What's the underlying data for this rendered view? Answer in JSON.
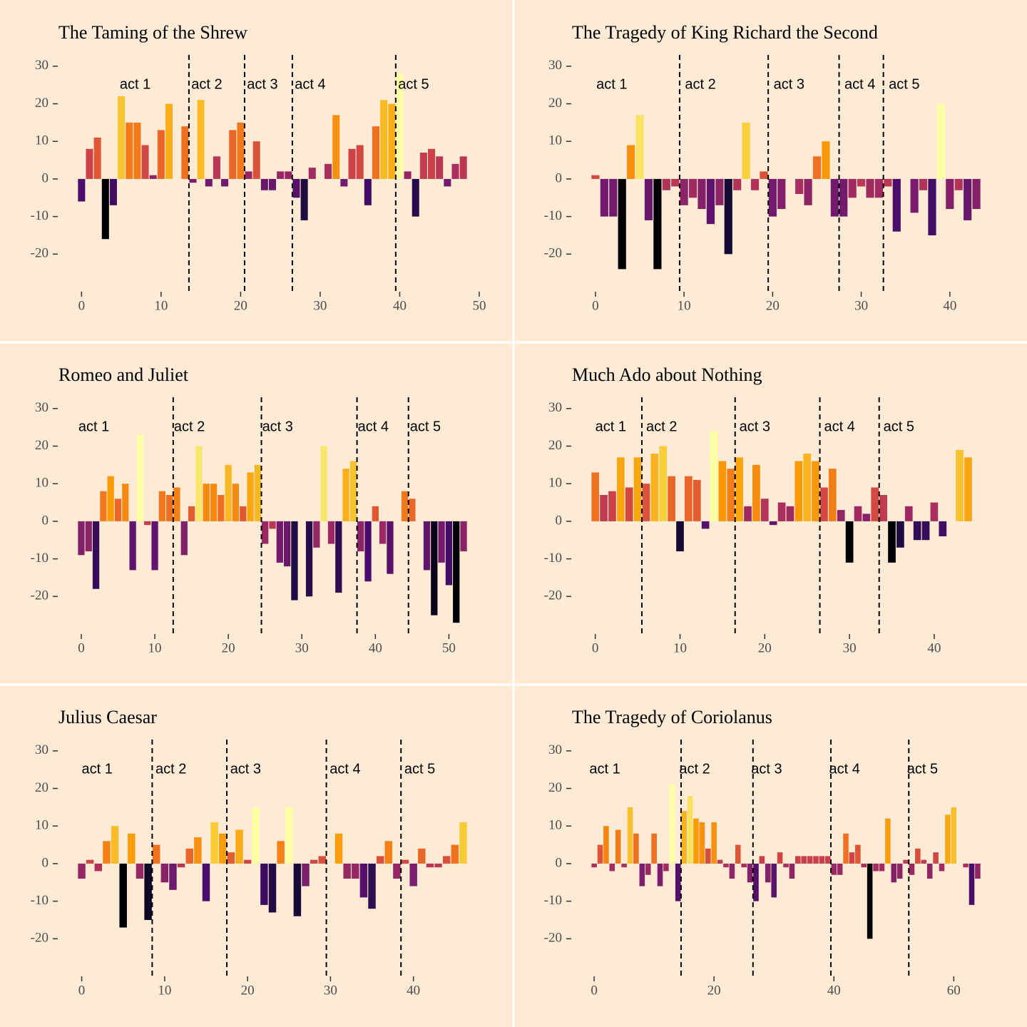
{
  "chart_data": [
    {
      "type": "bar",
      "title": "The Taming of the Shrew",
      "x": [
        0,
        1,
        2,
        3,
        4,
        5,
        6,
        7,
        8,
        9,
        10,
        11,
        12,
        13,
        14,
        15,
        16,
        17,
        18,
        19,
        20,
        21,
        22,
        23,
        24,
        25,
        26,
        27,
        28,
        29,
        30,
        31,
        32,
        33,
        34,
        35,
        36,
        37,
        38,
        39,
        40,
        41,
        42,
        43,
        44,
        45,
        46,
        47,
        48
      ],
      "values": [
        -6,
        8,
        11,
        -16,
        -7,
        22,
        15,
        15,
        9,
        1,
        13,
        20,
        0,
        14,
        -1,
        21,
        -2,
        6,
        -2,
        13,
        15,
        2,
        10,
        -3,
        -3,
        2,
        2,
        -5,
        -11,
        3,
        0,
        4,
        17,
        -2,
        8,
        9,
        -7,
        14,
        21,
        20,
        28,
        2,
        -10,
        7,
        8,
        6,
        -2,
        4,
        6
      ],
      "xlim": [
        -2.9,
        50.9
      ],
      "ylim": [
        -30,
        33
      ],
      "xticks": [
        0,
        10,
        20,
        30,
        40,
        50
      ],
      "yticks": [
        -20,
        -10,
        0,
        10,
        20,
        30
      ],
      "act_lines": [
        13.5,
        20.5,
        26.5,
        39.5
      ],
      "acts": [
        "act 1",
        "act 2",
        "act 3",
        "act 4",
        "act 5"
      ],
      "act_x": [
        4.8,
        13.8,
        20.8,
        26.8,
        39.8
      ],
      "act_label_y": 25,
      "colormap": [
        "#000004",
        "#1b0c41",
        "#4a0c6b",
        "#781c6d",
        "#a52c60",
        "#cf4446",
        "#ed6925",
        "#fb9b06",
        "#f7d13d",
        "#fcffa4"
      ]
    },
    {
      "type": "bar",
      "title": "The Tragedy of King Richard the Second",
      "x": [
        0,
        1,
        2,
        3,
        4,
        5,
        6,
        7,
        8,
        9,
        10,
        11,
        12,
        13,
        14,
        15,
        16,
        17,
        18,
        19,
        20,
        21,
        22,
        23,
        24,
        25,
        26,
        27,
        28,
        29,
        30,
        31,
        32,
        33,
        34,
        35,
        36,
        37,
        38,
        39,
        40,
        41,
        42,
        43
      ],
      "values": [
        1,
        -10,
        -10,
        -24,
        9,
        17,
        -11,
        -24,
        -3,
        -2,
        -7,
        -5,
        -8,
        -12,
        -7,
        -20,
        -3,
        15,
        -3,
        2,
        -10,
        -8,
        0,
        -4,
        -7,
        6,
        10,
        -10,
        -10,
        -5,
        -2,
        -5,
        -5,
        -2,
        -14,
        0,
        -9,
        -3,
        -15,
        20,
        -8,
        -3,
        -11,
        -8
      ],
      "xlim": [
        -2.65,
        45.65
      ],
      "ylim": [
        -30,
        33
      ],
      "xticks": [
        0,
        10,
        20,
        30,
        40
      ],
      "yticks": [
        -20,
        -10,
        0,
        10,
        20,
        30
      ],
      "act_lines": [
        9.5,
        19.5,
        27.5,
        32.5
      ],
      "acts": [
        "act 1",
        "act 2",
        "act 3",
        "act 4",
        "act 5"
      ],
      "act_x": [
        0.1,
        10.1,
        20.1,
        28.1,
        33.1
      ],
      "act_label_y": 25,
      "colormap": [
        "#000004",
        "#1b0c41",
        "#4a0c6b",
        "#781c6d",
        "#a52c60",
        "#cf4446",
        "#ed6925",
        "#fb9b06",
        "#f7d13d",
        "#fcffa4"
      ]
    },
    {
      "type": "bar",
      "title": "Romeo and Juliet",
      "x": [
        0,
        1,
        2,
        3,
        4,
        5,
        6,
        7,
        8,
        9,
        10,
        11,
        12,
        13,
        14,
        15,
        16,
        17,
        18,
        19,
        20,
        21,
        22,
        23,
        24,
        25,
        26,
        27,
        28,
        29,
        30,
        31,
        32,
        33,
        34,
        35,
        36,
        37,
        38,
        39,
        40,
        41,
        42,
        43,
        44,
        45,
        46,
        47,
        48,
        49,
        50,
        51,
        52
      ],
      "values": [
        -9,
        -8,
        -18,
        8,
        12,
        6,
        10,
        -13,
        23,
        -1,
        -13,
        8,
        7,
        9,
        -9,
        4,
        20,
        10,
        10,
        7,
        15,
        10,
        4,
        13,
        15,
        -6,
        -2,
        -11,
        -12,
        -21,
        0,
        -20,
        -7,
        20,
        -6,
        -19,
        14,
        16,
        -8,
        -16,
        4,
        -6,
        -14,
        0,
        8,
        6,
        0,
        -13,
        -25,
        -11,
        -17,
        -27,
        -8
      ],
      "xlim": [
        -3.1,
        55.1
      ],
      "ylim": [
        -30,
        33
      ],
      "xticks": [
        0,
        10,
        20,
        30,
        40,
        50
      ],
      "yticks": [
        -20,
        -10,
        0,
        10,
        20,
        30
      ],
      "act_lines": [
        12.5,
        24.5,
        37.5,
        44.5
      ],
      "acts": [
        "act 1",
        "act 2",
        "act 3",
        "act 4",
        "act 5"
      ],
      "act_x": [
        -0.4,
        12.6,
        24.6,
        37.6,
        44.7
      ],
      "act_label_y": 25,
      "colormap": [
        "#000004",
        "#1b0c41",
        "#4a0c6b",
        "#781c6d",
        "#a52c60",
        "#cf4446",
        "#ed6925",
        "#fb9b06",
        "#f7d13d",
        "#fcffa4"
      ]
    },
    {
      "type": "bar",
      "title": "Much Ado about Nothing",
      "x": [
        0,
        1,
        2,
        3,
        4,
        5,
        6,
        7,
        8,
        9,
        10,
        11,
        12,
        13,
        14,
        15,
        16,
        17,
        18,
        19,
        20,
        21,
        22,
        23,
        24,
        25,
        26,
        27,
        28,
        29,
        30,
        31,
        32,
        33,
        34,
        35,
        36,
        37,
        38,
        39,
        40,
        41,
        42,
        43,
        44
      ],
      "values": [
        13,
        7,
        8,
        17,
        9,
        17,
        10,
        18,
        20,
        12,
        -8,
        12,
        11,
        -2,
        24,
        16,
        14,
        17,
        4,
        15,
        6,
        -1,
        5,
        4,
        16,
        18,
        16,
        9,
        14,
        3,
        -11,
        4,
        2,
        9,
        7,
        -11,
        -7,
        4,
        -5,
        -5,
        5,
        -4,
        0,
        19,
        17
      ],
      "xlim": [
        -2.75,
        47.75
      ],
      "ylim": [
        -30,
        33
      ],
      "xticks": [
        0,
        10,
        20,
        30,
        40
      ],
      "yticks": [
        -20,
        -10,
        0,
        10,
        20,
        30
      ],
      "act_lines": [
        5.5,
        16.5,
        26.5,
        33.5
      ],
      "acts": [
        "act 1",
        "act 2",
        "act 3",
        "act 4",
        "act 5"
      ],
      "act_x": [
        0,
        6,
        17,
        27,
        34
      ],
      "act_label_y": 25,
      "colormap": [
        "#000004",
        "#1b0c41",
        "#4a0c6b",
        "#781c6d",
        "#a52c60",
        "#cf4446",
        "#ed6925",
        "#fb9b06",
        "#f7d13d",
        "#fcffa4"
      ]
    },
    {
      "type": "bar",
      "title": "Julius Caesar",
      "x": [
        0,
        1,
        2,
        3,
        4,
        5,
        6,
        7,
        8,
        9,
        10,
        11,
        12,
        13,
        14,
        15,
        16,
        17,
        18,
        19,
        20,
        21,
        22,
        23,
        24,
        25,
        26,
        27,
        28,
        29,
        30,
        31,
        32,
        33,
        34,
        35,
        36,
        37,
        38,
        39,
        40,
        41,
        42,
        43,
        44,
        45,
        46
      ],
      "values": [
        -4,
        1,
        -2,
        6,
        10,
        -17,
        8,
        -4,
        -15,
        5,
        -5,
        -7,
        -1,
        4,
        7,
        -10,
        11,
        8,
        3,
        9,
        1,
        15,
        -11,
        -13,
        6,
        15,
        -14,
        -6,
        1,
        2,
        0,
        8,
        -4,
        -4,
        -9,
        -12,
        2,
        6,
        -4,
        1,
        -6,
        4,
        -1,
        -1,
        2,
        5,
        11
      ],
      "xlim": [
        -2.8,
        48.8
      ],
      "ylim": [
        -30,
        33
      ],
      "xticks": [
        0,
        10,
        20,
        30,
        40
      ],
      "yticks": [
        -20,
        -10,
        0,
        10,
        20,
        30
      ],
      "act_lines": [
        8.5,
        17.5,
        29.5,
        38.5
      ],
      "acts": [
        "act 1",
        "act 2",
        "act 3",
        "act 4",
        "act 5"
      ],
      "act_x": [
        0,
        8.9,
        17.9,
        29.9,
        38.9
      ],
      "act_label_y": 25,
      "colormap": [
        "#000004",
        "#1b0c41",
        "#4a0c6b",
        "#781c6d",
        "#a52c60",
        "#cf4446",
        "#ed6925",
        "#fb9b06",
        "#f7d13d",
        "#fcffa4"
      ]
    },
    {
      "type": "bar",
      "title": "The Tragedy of Coriolanus",
      "x": [
        0,
        1,
        2,
        3,
        4,
        5,
        6,
        7,
        8,
        9,
        10,
        11,
        12,
        13,
        14,
        15,
        16,
        17,
        18,
        19,
        20,
        21,
        22,
        23,
        24,
        25,
        26,
        27,
        28,
        29,
        30,
        31,
        32,
        33,
        34,
        35,
        36,
        37,
        38,
        39,
        40,
        41,
        42,
        43,
        44,
        45,
        46,
        47,
        48,
        49,
        50,
        51,
        52,
        53,
        54,
        55,
        56,
        57,
        58,
        59,
        60,
        61,
        62,
        63,
        64
      ],
      "values": [
        -1,
        5,
        10,
        -2,
        9,
        -1,
        15,
        8,
        -6,
        -3,
        8,
        -6,
        -2,
        21,
        -10,
        14,
        18,
        12,
        11,
        4,
        11,
        1,
        -1,
        -4,
        5,
        -1,
        -5,
        -10,
        2,
        -5,
        -9,
        3,
        -1,
        -4,
        2,
        2,
        2,
        2,
        2,
        2,
        -3,
        -3,
        8,
        3,
        5,
        -1,
        -20,
        -2,
        -2,
        12,
        -5,
        -4,
        1,
        -3,
        4,
        1,
        -4,
        3,
        -2,
        13,
        15,
        0,
        -1,
        -11,
        -4
      ],
      "xlim": [
        -3.7,
        67.7
      ],
      "ylim": [
        -30,
        33
      ],
      "xticks": [
        0,
        20,
        40,
        60
      ],
      "yticks": [
        -20,
        -10,
        0,
        10,
        20,
        30
      ],
      "act_lines": [
        14.5,
        26.5,
        39.5,
        52.5
      ],
      "acts": [
        "act 1",
        "act 2",
        "act 3",
        "act 4",
        "act 5"
      ],
      "act_x": [
        -0.8,
        14.2,
        26.2,
        39.2,
        52.2
      ],
      "act_label_y": 25,
      "colormap": [
        "#000004",
        "#1b0c41",
        "#4a0c6b",
        "#781c6d",
        "#a52c60",
        "#cf4446",
        "#ed6925",
        "#fb9b06",
        "#f7d13d",
        "#fcffa4"
      ]
    }
  ]
}
